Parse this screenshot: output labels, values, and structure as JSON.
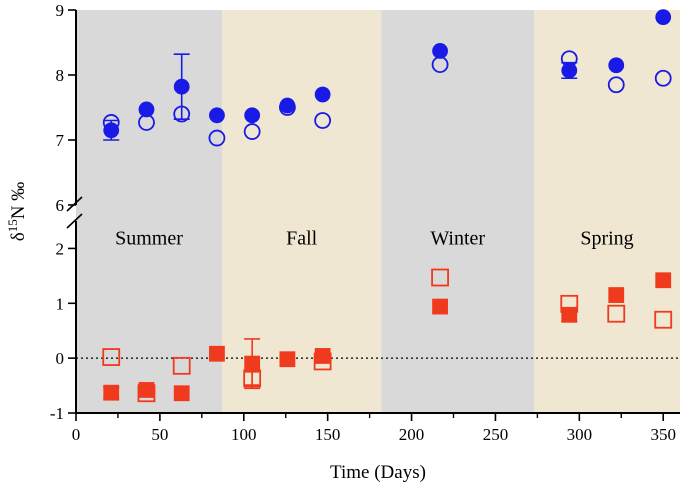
{
  "chart_data": {
    "type": "scatter",
    "title": "",
    "xlabel": "Time (Days)",
    "ylabel": {
      "prefix": "δ",
      "sup": "15",
      "rest": "N ‰"
    },
    "xlim": [
      0,
      360
    ],
    "ylim_lower": [
      -1,
      2.5
    ],
    "ylim_upper": [
      6,
      9
    ],
    "axis_break_at": 6,
    "x_ticks": [
      0,
      50,
      100,
      150,
      200,
      250,
      300,
      350
    ],
    "y_ticks_lower": [
      -1,
      0,
      1,
      2
    ],
    "y_ticks_upper": [
      6,
      7,
      8,
      9
    ],
    "zero_reference_line": true,
    "seasons": [
      {
        "label": "Summer",
        "start": 0,
        "end": 87,
        "color": "#d9d9d9"
      },
      {
        "label": "Fall",
        "start": 87,
        "end": 182,
        "color": "#efe7d2"
      },
      {
        "label": "Winter",
        "start": 182,
        "end": 273,
        "color": "#d9d9d9"
      },
      {
        "label": "Spring",
        "start": 273,
        "end": 360,
        "color": "#efe7d2"
      }
    ],
    "series": [
      {
        "name": "blue-filled-circle",
        "marker": "circle",
        "filled": true,
        "color": "#1a1ae6",
        "points": [
          {
            "x": 21,
            "y": 7.15,
            "err": 0.15
          },
          {
            "x": 42,
            "y": 7.47
          },
          {
            "x": 63,
            "y": 7.82,
            "err": 0.5
          },
          {
            "x": 84,
            "y": 7.38
          },
          {
            "x": 105,
            "y": 7.38
          },
          {
            "x": 126,
            "y": 7.53
          },
          {
            "x": 147,
            "y": 7.7
          },
          {
            "x": 217,
            "y": 8.37
          },
          {
            "x": 294,
            "y": 8.07,
            "err": 0.12
          },
          {
            "x": 322,
            "y": 8.15
          },
          {
            "x": 350,
            "y": 8.89
          }
        ]
      },
      {
        "name": "blue-open-circle",
        "marker": "circle",
        "filled": false,
        "color": "#1a1ae6",
        "points": [
          {
            "x": 21,
            "y": 7.27
          },
          {
            "x": 42,
            "y": 7.27
          },
          {
            "x": 63,
            "y": 7.4
          },
          {
            "x": 84,
            "y": 7.03
          },
          {
            "x": 105,
            "y": 7.13
          },
          {
            "x": 126,
            "y": 7.5
          },
          {
            "x": 147,
            "y": 7.3
          },
          {
            "x": 217,
            "y": 8.16
          },
          {
            "x": 294,
            "y": 8.25
          },
          {
            "x": 322,
            "y": 7.85
          },
          {
            "x": 350,
            "y": 7.95
          }
        ]
      },
      {
        "name": "red-filled-square",
        "marker": "square",
        "filled": true,
        "color": "#f03a1e",
        "points": [
          {
            "x": 21,
            "y": -0.63,
            "err": 0.1
          },
          {
            "x": 42,
            "y": -0.58,
            "err": 0.08
          },
          {
            "x": 63,
            "y": -0.64
          },
          {
            "x": 84,
            "y": 0.08
          },
          {
            "x": 105,
            "y": -0.1,
            "err": 0.45
          },
          {
            "x": 126,
            "y": -0.02
          },
          {
            "x": 147,
            "y": 0.04
          },
          {
            "x": 217,
            "y": 0.94
          },
          {
            "x": 294,
            "y": 0.79,
            "err": 0.12
          },
          {
            "x": 322,
            "y": 1.15
          },
          {
            "x": 350,
            "y": 1.42
          }
        ]
      },
      {
        "name": "red-open-square",
        "marker": "square",
        "filled": false,
        "color": "#f03a1e",
        "points": [
          {
            "x": 21,
            "y": 0.02
          },
          {
            "x": 42,
            "y": -0.64
          },
          {
            "x": 63,
            "y": -0.14
          },
          {
            "x": 105,
            "y": -0.37,
            "err": 0.12
          },
          {
            "x": 147,
            "y": -0.06
          },
          {
            "x": 217,
            "y": 1.47
          },
          {
            "x": 294,
            "y": 0.99
          },
          {
            "x": 322,
            "y": 0.81
          },
          {
            "x": 350,
            "y": 0.7
          }
        ]
      }
    ]
  }
}
